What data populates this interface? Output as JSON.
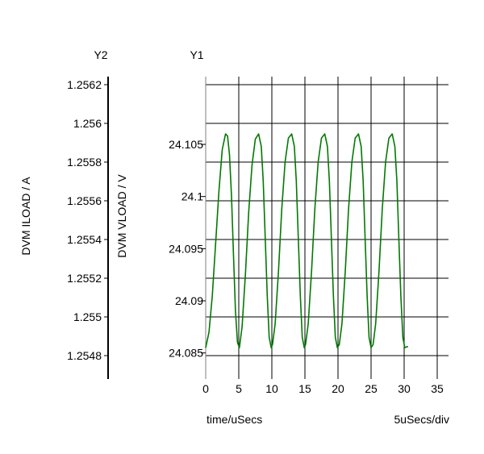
{
  "chart_data": {
    "type": "line",
    "y1_axis": {
      "header": "Y1",
      "label": "DVM VLOAD / V",
      "ticks": [
        "24.105",
        "24.1",
        "24.095",
        "24.09",
        "24.085"
      ],
      "tick_values": [
        24.105,
        24.1,
        24.095,
        24.09,
        24.085
      ],
      "range": [
        24.0825,
        24.1115
      ]
    },
    "y2_axis": {
      "header": "Y2",
      "label": "DVM ILOAD / A",
      "ticks": [
        "1.2562",
        "1.256",
        "1.2558",
        "1.2556",
        "1.2554",
        "1.2552",
        "1.255",
        "1.2548"
      ],
      "tick_values": [
        1.2562,
        1.256,
        1.2558,
        1.2556,
        1.2554,
        1.2552,
        1.255,
        1.2548
      ]
    },
    "x_axis": {
      "label": "time/uSecs",
      "scale_note": "5uSecs/div",
      "ticks": [
        "0",
        "5",
        "10",
        "15",
        "20",
        "25",
        "30",
        "35"
      ],
      "tick_values": [
        0,
        5,
        10,
        15,
        20,
        25,
        30,
        35
      ],
      "range": [
        0,
        35
      ]
    },
    "grid": true,
    "series": [
      {
        "axis": "y1",
        "color": "#007a00",
        "x": [
          0,
          0.5,
          1.0,
          1.5,
          2.0,
          2.5,
          3.0,
          3.3,
          3.6,
          3.9,
          4.2,
          4.5,
          4.8,
          5.1,
          5.5,
          6.0,
          6.5,
          7.0,
          7.5,
          8.0,
          8.4,
          8.7,
          9.0,
          9.3,
          9.6,
          9.9,
          10.1,
          10.5,
          11.0,
          11.5,
          12.0,
          12.5,
          13.0,
          13.4,
          13.7,
          14.0,
          14.3,
          14.6,
          14.9,
          15.1,
          15.5,
          16.0,
          16.5,
          17.0,
          17.5,
          18.0,
          18.4,
          18.7,
          19.0,
          19.3,
          19.6,
          19.9,
          20.2,
          20.6,
          21.1,
          21.6,
          22.1,
          22.6,
          23.1,
          23.5,
          23.8,
          24.1,
          24.4,
          24.7,
          25.0,
          25.3,
          25.7,
          26.2,
          26.7,
          27.2,
          27.7,
          28.2,
          28.6,
          28.9,
          29.2,
          29.5,
          29.8,
          30.1,
          30.4,
          30.6
        ],
        "y": [
          24.0855,
          24.087,
          24.0905,
          24.0955,
          24.1005,
          24.1045,
          24.106,
          24.1058,
          24.104,
          24.1,
          24.0945,
          24.089,
          24.086,
          24.0855,
          24.0875,
          24.0925,
          24.0985,
          24.103,
          24.1055,
          24.106,
          24.1048,
          24.1015,
          24.096,
          24.0905,
          24.0865,
          24.0855,
          24.0858,
          24.0878,
          24.0928,
          24.0988,
          24.1033,
          24.1056,
          24.106,
          24.1048,
          24.1015,
          24.096,
          24.0905,
          24.0865,
          24.0855,
          24.0858,
          24.0878,
          24.0928,
          24.0988,
          24.1033,
          24.1056,
          24.106,
          24.1048,
          24.1015,
          24.096,
          24.0905,
          24.0865,
          24.0855,
          24.0858,
          24.0878,
          24.0928,
          24.0988,
          24.1033,
          24.1056,
          24.106,
          24.1048,
          24.1015,
          24.096,
          24.0905,
          24.0865,
          24.0855,
          24.0858,
          24.0878,
          24.0928,
          24.0988,
          24.1033,
          24.1056,
          24.106,
          24.1048,
          24.1015,
          24.096,
          24.0905,
          24.0865,
          24.0855,
          24.0856,
          24.0856
        ]
      }
    ]
  }
}
